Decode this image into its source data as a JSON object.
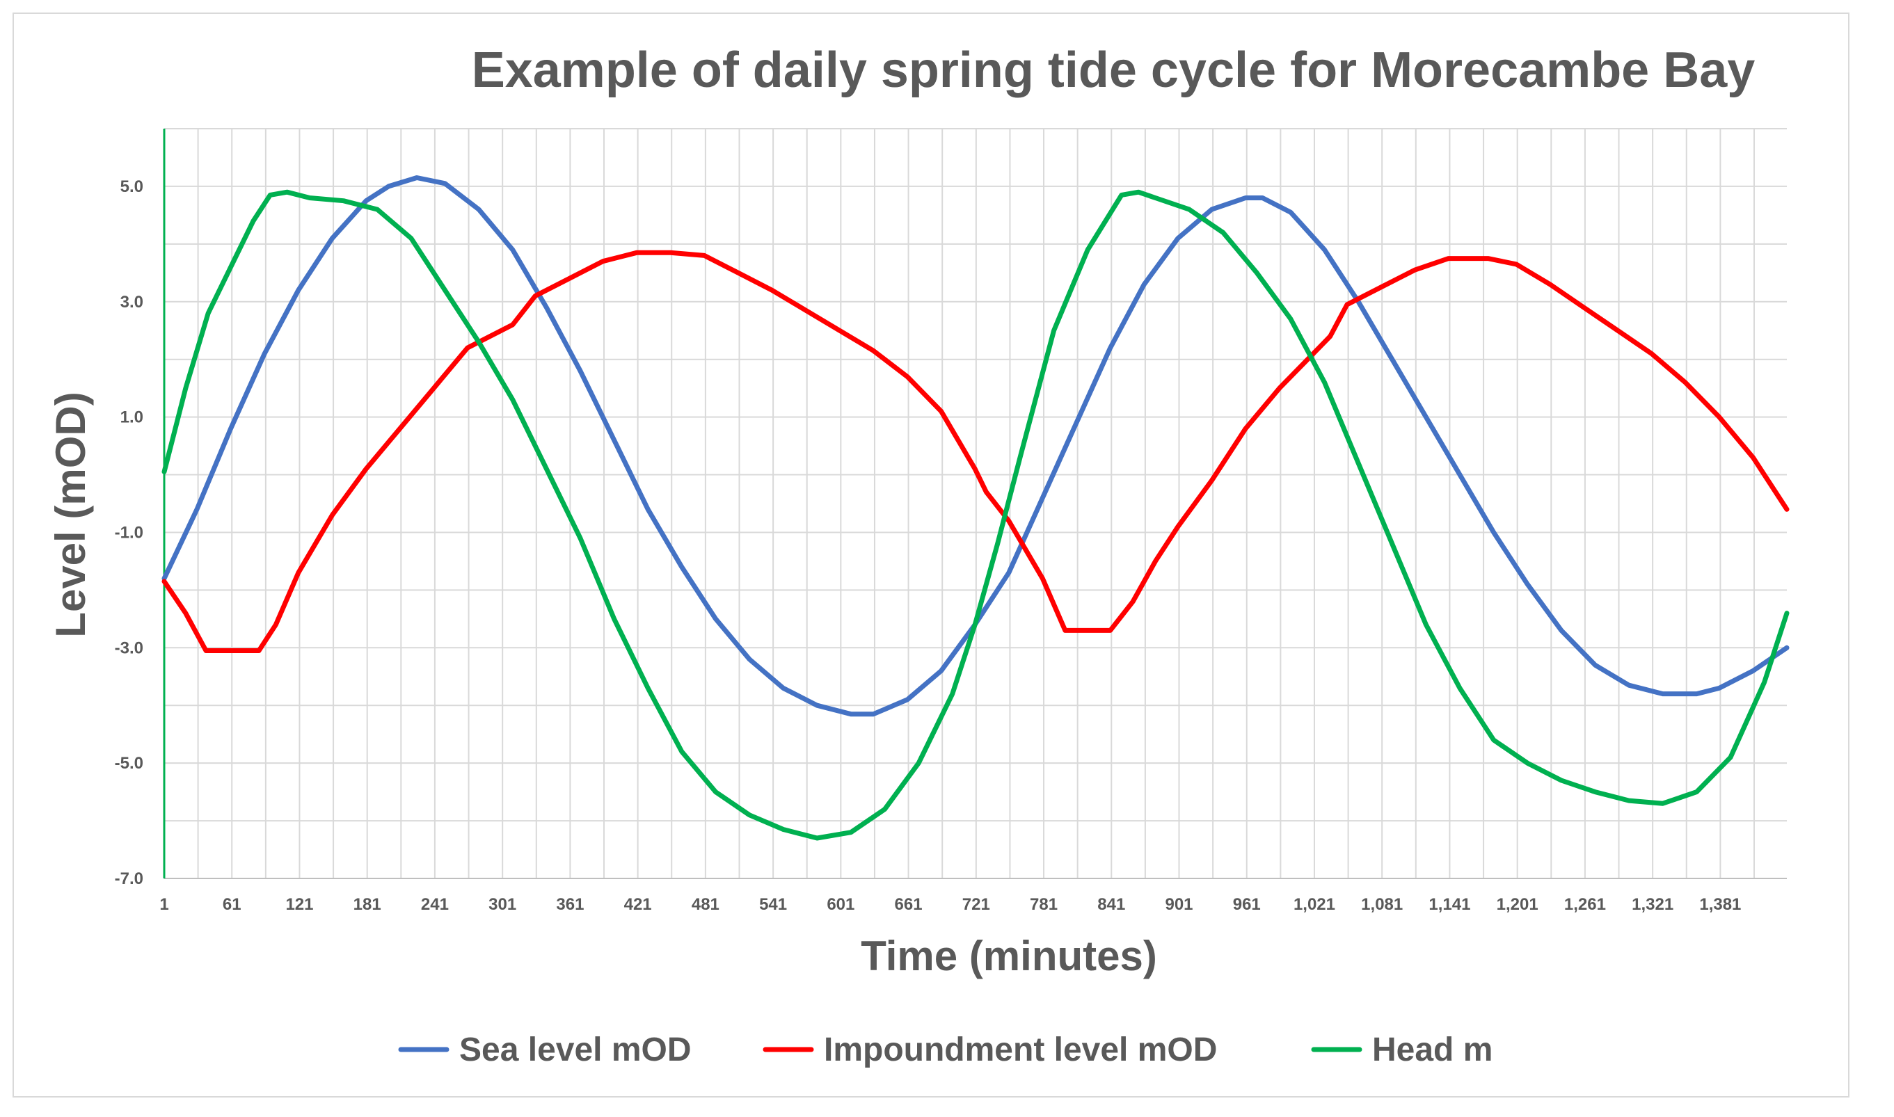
{
  "chart_data": {
    "type": "line",
    "title": "Example of daily spring tide cycle for Morecambe Bay",
    "xlabel": "Time (minutes)",
    "ylabel": "Level (mOD)",
    "xlim": [
      1,
      1440
    ],
    "ylim": [
      -7,
      6
    ],
    "grid": true,
    "legend_position": "bottom",
    "x_ticks": [
      {
        "value": 1,
        "label": "1"
      },
      {
        "value": 61,
        "label": "61"
      },
      {
        "value": 121,
        "label": "121"
      },
      {
        "value": 181,
        "label": "181"
      },
      {
        "value": 241,
        "label": "241"
      },
      {
        "value": 301,
        "label": "301"
      },
      {
        "value": 361,
        "label": "361"
      },
      {
        "value": 421,
        "label": "421"
      },
      {
        "value": 481,
        "label": "481"
      },
      {
        "value": 541,
        "label": "541"
      },
      {
        "value": 601,
        "label": "601"
      },
      {
        "value": 661,
        "label": "661"
      },
      {
        "value": 721,
        "label": "721"
      },
      {
        "value": 781,
        "label": "781"
      },
      {
        "value": 841,
        "label": "841"
      },
      {
        "value": 901,
        "label": "901"
      },
      {
        "value": 961,
        "label": "961"
      },
      {
        "value": 1021,
        "label": "1,021"
      },
      {
        "value": 1081,
        "label": "1,081"
      },
      {
        "value": 1141,
        "label": "1,141"
      },
      {
        "value": 1201,
        "label": "1,201"
      },
      {
        "value": 1261,
        "label": "1,261"
      },
      {
        "value": 1321,
        "label": "1,321"
      },
      {
        "value": 1381,
        "label": "1,381"
      }
    ],
    "y_ticks": [
      {
        "value": 5,
        "label": "5.0"
      },
      {
        "value": 3,
        "label": "3.0"
      },
      {
        "value": 1,
        "label": "1.0"
      },
      {
        "value": -1,
        "label": "-1.0"
      },
      {
        "value": -3,
        "label": "-3.0"
      },
      {
        "value": -5,
        "label": "-5.0"
      },
      {
        "value": -7,
        "label": "-7.0"
      }
    ],
    "series": [
      {
        "name": "Sea level mOD",
        "color": "#4472c4",
        "x": [
          1,
          30,
          60,
          90,
          120,
          150,
          180,
          200,
          225,
          250,
          280,
          310,
          340,
          370,
          400,
          430,
          460,
          490,
          520,
          550,
          580,
          610,
          630,
          660,
          690,
          720,
          750,
          780,
          810,
          840,
          870,
          900,
          930,
          960,
          975,
          1000,
          1030,
          1060,
          1090,
          1120,
          1150,
          1180,
          1210,
          1240,
          1270,
          1300,
          1330,
          1360,
          1380,
          1410,
          1440
        ],
        "y": [
          -1.8,
          -0.6,
          0.8,
          2.1,
          3.2,
          4.1,
          4.75,
          5.0,
          5.15,
          5.05,
          4.6,
          3.9,
          2.9,
          1.8,
          0.6,
          -0.6,
          -1.6,
          -2.5,
          -3.2,
          -3.7,
          -4.0,
          -4.15,
          -4.15,
          -3.9,
          -3.4,
          -2.6,
          -1.7,
          -0.4,
          0.9,
          2.2,
          3.3,
          4.1,
          4.6,
          4.8,
          4.8,
          4.55,
          3.9,
          3.0,
          2.0,
          1.0,
          0.0,
          -1.0,
          -1.9,
          -2.7,
          -3.3,
          -3.65,
          -3.8,
          -3.8,
          -3.7,
          -3.4,
          -3.0
        ]
      },
      {
        "name": "Impoundment level mOD",
        "color": "#ff0000",
        "x": [
          1,
          20,
          38,
          60,
          85,
          100,
          120,
          150,
          180,
          210,
          240,
          270,
          290,
          310,
          330,
          360,
          390,
          420,
          450,
          480,
          510,
          540,
          570,
          600,
          630,
          660,
          690,
          720,
          730,
          750,
          780,
          800,
          840,
          860,
          880,
          900,
          930,
          960,
          990,
          1020,
          1035,
          1050,
          1080,
          1110,
          1140,
          1155,
          1175,
          1200,
          1230,
          1260,
          1290,
          1320,
          1350,
          1380,
          1410,
          1440
        ],
        "y": [
          -1.85,
          -2.4,
          -3.05,
          -3.05,
          -3.05,
          -2.6,
          -1.7,
          -0.7,
          0.1,
          0.8,
          1.5,
          2.2,
          2.4,
          2.6,
          3.1,
          3.4,
          3.7,
          3.85,
          3.85,
          3.8,
          3.5,
          3.2,
          2.85,
          2.5,
          2.15,
          1.7,
          1.1,
          0.1,
          -0.3,
          -0.8,
          -1.8,
          -2.7,
          -2.7,
          -2.2,
          -1.5,
          -0.9,
          -0.1,
          0.8,
          1.5,
          2.1,
          2.4,
          2.95,
          3.25,
          3.55,
          3.75,
          3.75,
          3.75,
          3.65,
          3.3,
          2.9,
          2.5,
          2.1,
          1.6,
          1.0,
          0.3,
          -0.6
        ]
      },
      {
        "name": "Head m",
        "color": "#00b050",
        "x": [
          1,
          20,
          40,
          60,
          80,
          95,
          110,
          130,
          160,
          190,
          220,
          250,
          280,
          310,
          340,
          370,
          400,
          430,
          460,
          490,
          520,
          550,
          580,
          610,
          640,
          670,
          700,
          720,
          740,
          760,
          790,
          820,
          850,
          865,
          880,
          910,
          940,
          970,
          1000,
          1030,
          1060,
          1090,
          1120,
          1150,
          1180,
          1210,
          1240,
          1270,
          1300,
          1330,
          1360,
          1390,
          1420,
          1440
        ],
        "y": [
          0.05,
          1.5,
          2.8,
          3.6,
          4.4,
          4.85,
          4.9,
          4.8,
          4.75,
          4.6,
          4.1,
          3.2,
          2.3,
          1.3,
          0.1,
          -1.1,
          -2.5,
          -3.7,
          -4.8,
          -5.5,
          -5.9,
          -6.15,
          -6.3,
          -6.2,
          -5.8,
          -5.0,
          -3.8,
          -2.6,
          -1.2,
          0.3,
          2.5,
          3.9,
          4.85,
          4.9,
          4.8,
          4.6,
          4.2,
          3.5,
          2.7,
          1.6,
          0.2,
          -1.2,
          -2.6,
          -3.7,
          -4.6,
          -5.0,
          -5.3,
          -5.5,
          -5.65,
          -5.7,
          -5.5,
          -4.9,
          -3.6,
          -2.4
        ]
      }
    ]
  }
}
